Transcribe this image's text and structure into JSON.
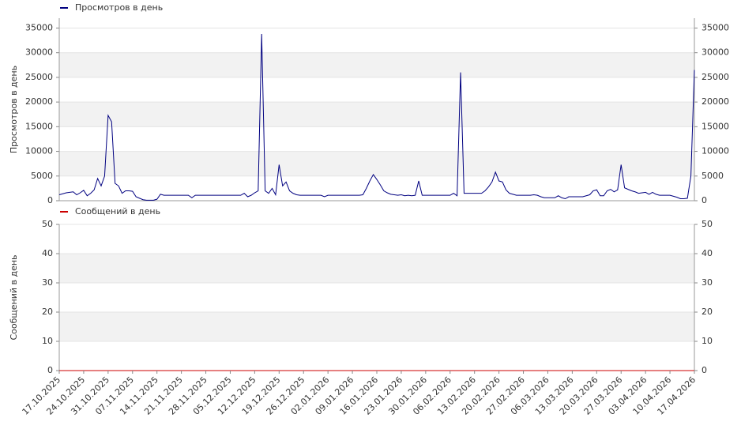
{
  "chart_data": [
    {
      "type": "line",
      "ylabel": "Просмотров в день",
      "ylim": [
        0,
        37000
      ],
      "yticks": [
        0,
        5000,
        10000,
        15000,
        20000,
        25000,
        30000,
        35000
      ],
      "y2lim": [
        0,
        37000
      ],
      "y2ticks": [
        0,
        5000,
        10000,
        15000,
        20000,
        25000,
        30000,
        35000
      ],
      "grid": true,
      "series": [
        {
          "name": "Просмотров в день",
          "color": "#000080",
          "values": [
            1200,
            1400,
            1600,
            1700,
            1800,
            1200,
            1600,
            2100,
            1000,
            1500,
            2200,
            4500,
            3000,
            5000,
            17300,
            16000,
            3500,
            3000,
            1500,
            2000,
            2000,
            1900,
            800,
            500,
            200,
            100,
            100,
            100,
            300,
            1300,
            1100,
            1100,
            1100,
            1100,
            1100,
            1100,
            1100,
            1100,
            600,
            1100,
            1100,
            1100,
            1100,
            1100,
            1100,
            1100,
            1100,
            1100,
            1100,
            1100,
            1100,
            1100,
            1100,
            1500,
            800,
            1100,
            1600,
            2000,
            33800,
            2000,
            1500,
            2500,
            1200,
            7300,
            3000,
            3800,
            2000,
            1500,
            1200,
            1100,
            1100,
            1100,
            1100,
            1100,
            1100,
            1100,
            800,
            1100,
            1100,
            1100,
            1100,
            1100,
            1100,
            1100,
            1100,
            1100,
            1100,
            1200,
            2500,
            4000,
            5300,
            4300,
            3200,
            2000,
            1600,
            1300,
            1200,
            1100,
            1200,
            1000,
            1100,
            1000,
            1100,
            4000,
            1100,
            1100,
            1100,
            1100,
            1100,
            1100,
            1100,
            1100,
            1100,
            1500,
            1000,
            26000,
            1500,
            1500,
            1500,
            1500,
            1500,
            1500,
            2000,
            2800,
            3800,
            5800,
            4000,
            3800,
            2200,
            1500,
            1300,
            1100,
            1100,
            1100,
            1100,
            1100,
            1200,
            1100,
            800,
            600,
            600,
            600,
            600,
            1000,
            600,
            400,
            800,
            800,
            800,
            800,
            800,
            1000,
            1200,
            2000,
            2200,
            1000,
            1000,
            2000,
            2300,
            1800,
            2200,
            7300,
            2600,
            2300,
            2000,
            1800,
            1500,
            1600,
            1700,
            1300,
            1700,
            1300,
            1100,
            1100,
            1100,
            1100,
            900,
            700,
            400,
            400,
            500,
            5000,
            26500
          ]
        }
      ]
    },
    {
      "type": "line",
      "ylabel": "Сообщений в день",
      "ylim": [
        0,
        50
      ],
      "yticks": [
        0,
        10,
        20,
        30,
        40,
        50
      ],
      "y2lim": [
        0,
        50
      ],
      "y2ticks": [
        0,
        10,
        20,
        30,
        40,
        50
      ],
      "grid": true,
      "categories": [
        "17.10.2025",
        null,
        null,
        null,
        null,
        null,
        null,
        "24.10.2025",
        null,
        null,
        null,
        null,
        null,
        null,
        "31.10.2025",
        null,
        null,
        null,
        null,
        null,
        null,
        "07.11.2025",
        null,
        null,
        null,
        null,
        null,
        null,
        "14.11.2025",
        null,
        null,
        null,
        null,
        null,
        null,
        "21.11.2025",
        null,
        null,
        null,
        null,
        null,
        null,
        "28.11.2025",
        null,
        null,
        null,
        null,
        null,
        null,
        "05.12.2025",
        null,
        null,
        null,
        null,
        null,
        null,
        "12.12.2025",
        null,
        null,
        null,
        null,
        null,
        null,
        "19.12.2025",
        null,
        null,
        null,
        null,
        null,
        null,
        "26.12.2025",
        null,
        null,
        null,
        null,
        null,
        null,
        "02.01.2026",
        null,
        null,
        null,
        null,
        null,
        null,
        "09.01.2026",
        null,
        null,
        null,
        null,
        null,
        null,
        "16.01.2026",
        null,
        null,
        null,
        null,
        null,
        null,
        "23.01.2026",
        null,
        null,
        null,
        null,
        null,
        null,
        "30.01.2026",
        null,
        null,
        null,
        null,
        null,
        null,
        "06.02.2026",
        null,
        null,
        null,
        null,
        null,
        null,
        "13.02.2026",
        null,
        null,
        null,
        null,
        null,
        null,
        "20.02.2026",
        null,
        null,
        null,
        null,
        null,
        null,
        "27.02.2026",
        null,
        null,
        null,
        null,
        null,
        null,
        "06.03.2026",
        null,
        null,
        null,
        null,
        null,
        null,
        "13.03.2026",
        null,
        null,
        null,
        null,
        null,
        null,
        "20.03.2026",
        null,
        null,
        null,
        null,
        null,
        null,
        "27.03.2026",
        null,
        null,
        null,
        null,
        null,
        null,
        "03.04.2026",
        null,
        null,
        null,
        null,
        null,
        null,
        "10.04.2026",
        null,
        null,
        null,
        null,
        null,
        null,
        "17.04.2026"
      ],
      "series": [
        {
          "name": "Сообщений в день",
          "color": "#cc0000",
          "values": [
            0,
            0,
            0,
            0,
            0,
            0,
            0,
            0,
            0,
            0,
            0,
            0,
            0,
            0,
            0,
            0,
            0,
            0,
            0,
            0,
            0,
            0,
            0,
            0,
            0,
            0,
            0,
            0,
            0,
            0,
            0,
            0,
            0,
            0,
            0,
            0,
            0,
            0,
            0,
            0,
            0,
            0,
            0,
            0,
            0,
            0,
            0,
            0,
            0,
            0,
            0,
            0,
            0,
            0,
            0,
            0,
            0,
            0,
            0,
            0,
            0,
            0,
            0,
            0,
            0,
            0,
            0,
            0,
            0,
            0,
            0,
            0,
            0,
            0,
            0,
            0,
            0,
            0,
            0,
            0,
            0,
            0,
            0,
            0,
            0,
            0,
            0,
            0,
            0,
            0,
            0,
            0,
            0,
            0,
            0,
            0,
            0,
            0,
            0,
            0,
            0,
            0,
            0,
            0,
            0,
            0,
            0,
            0,
            0,
            0,
            0,
            0,
            0,
            0,
            0,
            0,
            0,
            0,
            0,
            0,
            0,
            0,
            0,
            0,
            0,
            0,
            0,
            0,
            0,
            0,
            0,
            0,
            0,
            0,
            0,
            0,
            0,
            0,
            0,
            0,
            0,
            0,
            0,
            0,
            0,
            0,
            0,
            0,
            0,
            0,
            0,
            0,
            0,
            0,
            0,
            0,
            0,
            0,
            0,
            0,
            0,
            0,
            0,
            0,
            0,
            0,
            0,
            0,
            0,
            0,
            0,
            0,
            0,
            0,
            0,
            0,
            0,
            0,
            0,
            0,
            0,
            0,
            0
          ]
        }
      ]
    }
  ]
}
